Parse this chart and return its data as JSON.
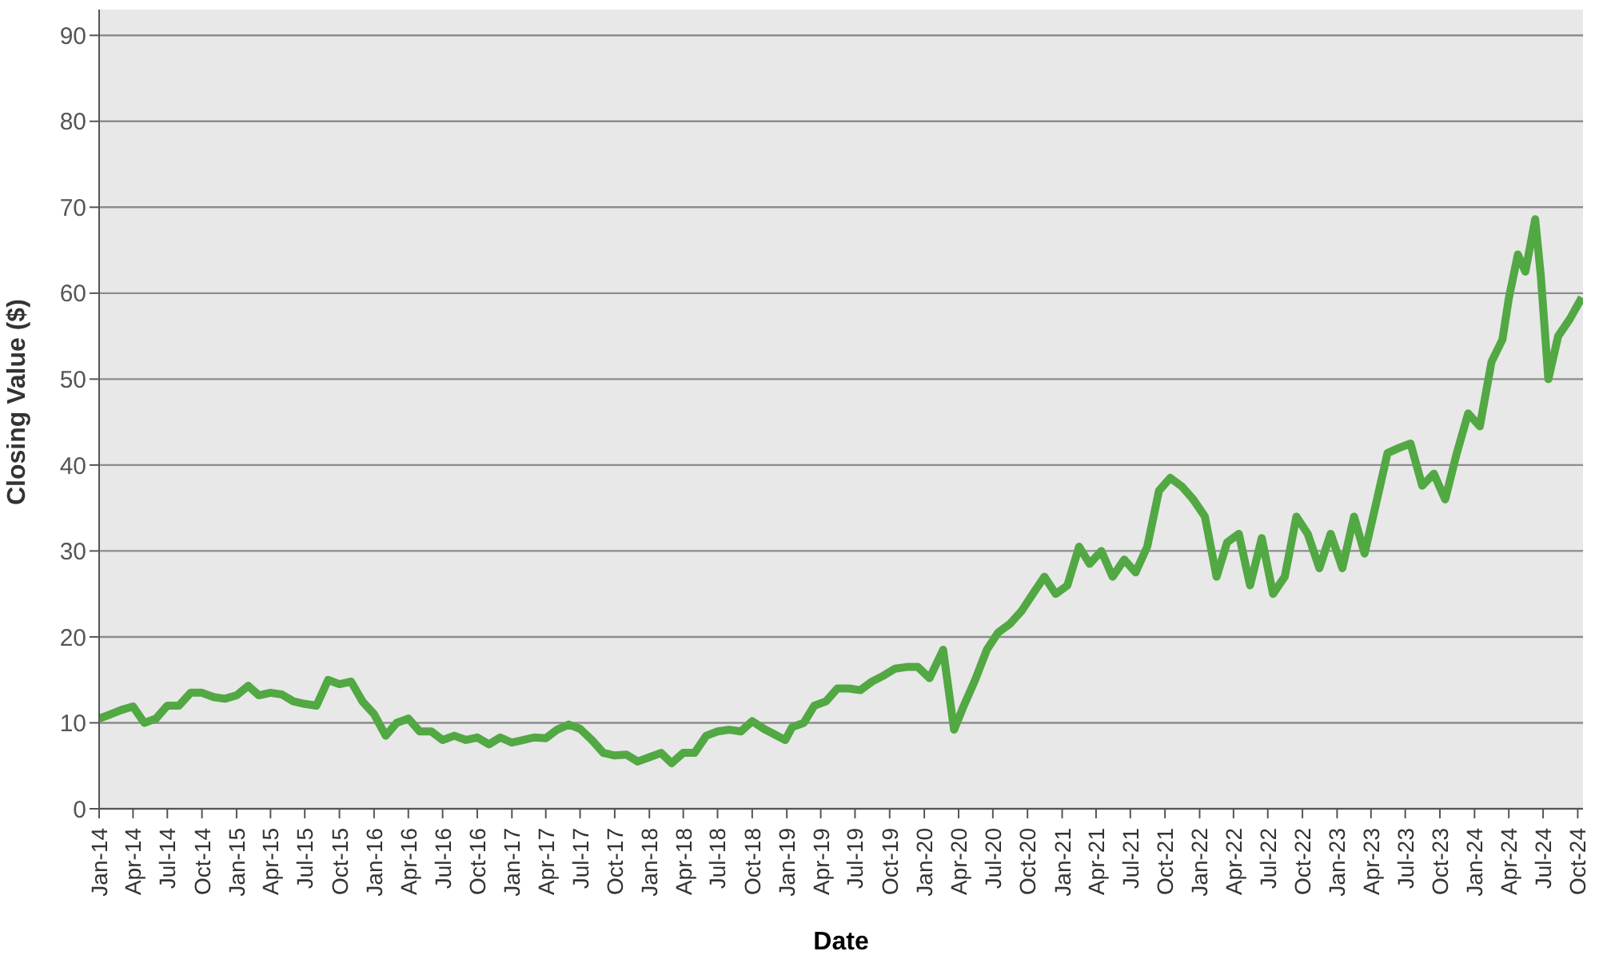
{
  "chart_data": {
    "type": "line",
    "xlabel": "Date",
    "ylabel": "Closing Value ($)",
    "x": [
      "2014-01-01",
      "2014-02-01",
      "2014-03-01",
      "2014-04-01",
      "2014-05-01",
      "2014-06-01",
      "2014-07-01",
      "2014-08-01",
      "2014-09-01",
      "2014-10-01",
      "2014-11-01",
      "2014-12-01",
      "2015-01-01",
      "2015-02-01",
      "2015-03-01",
      "2015-04-01",
      "2015-05-01",
      "2015-06-01",
      "2015-07-01",
      "2015-08-01",
      "2015-09-01",
      "2015-10-01",
      "2015-11-01",
      "2015-12-01",
      "2016-01-01",
      "2016-02-01",
      "2016-03-01",
      "2016-04-01",
      "2016-05-01",
      "2016-06-01",
      "2016-07-01",
      "2016-08-01",
      "2016-09-01",
      "2016-10-01",
      "2016-11-01",
      "2016-12-01",
      "2017-01-01",
      "2017-02-01",
      "2017-03-01",
      "2017-04-01",
      "2017-05-01",
      "2017-06-01",
      "2017-07-01",
      "2017-08-01",
      "2017-09-01",
      "2017-10-01",
      "2017-11-01",
      "2017-12-01",
      "2018-01-01",
      "2018-02-01",
      "2018-03-01",
      "2018-04-01",
      "2018-05-01",
      "2018-06-01",
      "2018-07-01",
      "2018-08-01",
      "2018-09-01",
      "2018-10-01",
      "2018-11-01",
      "2018-12-28",
      "2019-01-15",
      "2019-02-15",
      "2019-03-15",
      "2019-04-15",
      "2019-05-15",
      "2019-06-15",
      "2019-07-15",
      "2019-08-15",
      "2019-09-15",
      "2019-10-15",
      "2019-11-15",
      "2019-12-15",
      "2020-01-15",
      "2020-02-20",
      "2020-03-20",
      "2020-04-15",
      "2020-05-15",
      "2020-06-15",
      "2020-07-15",
      "2020-08-15",
      "2020-09-15",
      "2020-10-15",
      "2020-11-15",
      "2020-12-15",
      "2021-01-15",
      "2021-02-15",
      "2021-03-15",
      "2021-04-15",
      "2021-05-15",
      "2021-06-15",
      "2021-07-15",
      "2021-08-15",
      "2021-09-15",
      "2021-10-15",
      "2021-11-15",
      "2021-12-15",
      "2022-01-15",
      "2022-02-15",
      "2022-03-15",
      "2022-04-15",
      "2022-05-15",
      "2022-06-15",
      "2022-07-15",
      "2022-08-15",
      "2022-09-15",
      "2022-10-15",
      "2022-11-15",
      "2022-12-15",
      "2023-01-15",
      "2023-02-15",
      "2023-03-15",
      "2023-04-15",
      "2023-05-15",
      "2023-06-15",
      "2023-07-15",
      "2023-08-15",
      "2023-09-15",
      "2023-10-15",
      "2023-11-15",
      "2023-12-15",
      "2024-01-15",
      "2024-02-15",
      "2024-03-15",
      "2024-04-01",
      "2024-04-25",
      "2024-05-15",
      "2024-06-10",
      "2024-06-25",
      "2024-07-15",
      "2024-08-10",
      "2024-09-10",
      "2024-10-12"
    ],
    "series": [
      {
        "color": "#52a843",
        "values": [
          10.5,
          11,
          11.5,
          11.9,
          10,
          10.5,
          12,
          12,
          13.5,
          13.5,
          13,
          12.8,
          13.2,
          14.3,
          13.2,
          13.5,
          13.3,
          12.5,
          12.2,
          12,
          15,
          14.5,
          14.8,
          12.5,
          11,
          8.5,
          10,
          10.5,
          9,
          9,
          8,
          8.5,
          8,
          8.3,
          7.5,
          8.3,
          7.7,
          8,
          8.3,
          8.2,
          9.2,
          9.8,
          9.3,
          8,
          6.5,
          6.2,
          6.3,
          5.5,
          6,
          6.5,
          5.3,
          6.5,
          6.5,
          8.5,
          9,
          9.2,
          9,
          10.2,
          9.3,
          8,
          9.5,
          10,
          12,
          12.5,
          14,
          14,
          13.8,
          14.8,
          15.5,
          16.3,
          16.5,
          16.5,
          15.2,
          18.5,
          9.2,
          12,
          15,
          18.5,
          20.5,
          21.5,
          23,
          25,
          27,
          25,
          26,
          30.5,
          28.5,
          30,
          27,
          29,
          27.5,
          30.5,
          37,
          38.5,
          37.5,
          36,
          34,
          27,
          31,
          32,
          26,
          31.5,
          25,
          27,
          34,
          32,
          28,
          32,
          28,
          34,
          29.7,
          35.6,
          41.4,
          42,
          42.5,
          37.6,
          39,
          36,
          41.4,
          46,
          44.5,
          52,
          54.6,
          59.4,
          64.5,
          62.5,
          68.6,
          62,
          50,
          55,
          57,
          59.5
        ]
      }
    ],
    "ylim": [
      0,
      93
    ],
    "yticks": [
      0,
      10,
      20,
      30,
      40,
      50,
      60,
      70,
      80,
      90
    ],
    "grid": "y",
    "marker": "none",
    "line_style": "solid",
    "xlim": [
      "2014-01-01",
      "2024-10-15"
    ],
    "xticks": [
      {
        "value": "2014-01",
        "label": "Jan-14"
      },
      {
        "value": "2014-04",
        "label": "Apr-14"
      },
      {
        "value": "2014-07",
        "label": "Jul-14"
      },
      {
        "value": "2014-10",
        "label": "Oct-14"
      },
      {
        "value": "2015-01",
        "label": "Jan-15"
      },
      {
        "value": "2015-04",
        "label": "Apr-15"
      },
      {
        "value": "2015-07",
        "label": "Jul-15"
      },
      {
        "value": "2015-10",
        "label": "Oct-15"
      },
      {
        "value": "2016-01",
        "label": "Jan-16"
      },
      {
        "value": "2016-04",
        "label": "Apr-16"
      },
      {
        "value": "2016-07",
        "label": "Jul-16"
      },
      {
        "value": "2016-10",
        "label": "Oct-16"
      },
      {
        "value": "2017-01",
        "label": "Jan-17"
      },
      {
        "value": "2017-04",
        "label": "Apr-17"
      },
      {
        "value": "2017-07",
        "label": "Jul-17"
      },
      {
        "value": "2017-10",
        "label": "Oct-17"
      },
      {
        "value": "2018-01",
        "label": "Jan-18"
      },
      {
        "value": "2018-04",
        "label": "Apr-18"
      },
      {
        "value": "2018-07",
        "label": "Jul-18"
      },
      {
        "value": "2018-10",
        "label": "Oct-18"
      },
      {
        "value": "2019-01",
        "label": "Jan-19"
      },
      {
        "value": "2019-04",
        "label": "Apr-19"
      },
      {
        "value": "2019-07",
        "label": "Jul-19"
      },
      {
        "value": "2019-10",
        "label": "Oct-19"
      },
      {
        "value": "2020-01",
        "label": "Jan-20"
      },
      {
        "value": "2020-04",
        "label": "Apr-20"
      },
      {
        "value": "2020-07",
        "label": "Jul-20"
      },
      {
        "value": "2020-10",
        "label": "Oct-20"
      },
      {
        "value": "2021-01",
        "label": "Jan-21"
      },
      {
        "value": "2021-04",
        "label": "Apr-21"
      },
      {
        "value": "2021-07",
        "label": "Jul-21"
      },
      {
        "value": "2021-10",
        "label": "Oct-21"
      },
      {
        "value": "2022-01",
        "label": "Jan-22"
      },
      {
        "value": "2022-04",
        "label": "Apr-22"
      },
      {
        "value": "2022-07",
        "label": "Jul-22"
      },
      {
        "value": "2022-10",
        "label": "Oct-22"
      },
      {
        "value": "2023-01",
        "label": "Jan-23"
      },
      {
        "value": "2023-04",
        "label": "Apr-23"
      },
      {
        "value": "2023-07",
        "label": "Jul-23"
      },
      {
        "value": "2023-10",
        "label": "Oct-23"
      },
      {
        "value": "2024-01",
        "label": "Jan-24"
      },
      {
        "value": "2024-04",
        "label": "Apr-24"
      },
      {
        "value": "2024-07",
        "label": "Jul-24"
      },
      {
        "value": "2024-10",
        "label": "Oct-24"
      }
    ]
  }
}
